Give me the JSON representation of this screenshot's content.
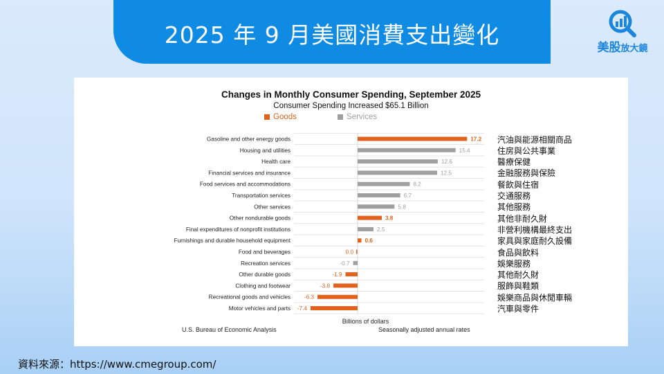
{
  "header": {
    "title": "2025 年 9 月美國消費支出變化"
  },
  "logo": {
    "icon": "magnifier-chart-icon",
    "brand_main": "美股",
    "brand_sub": "放大鏡",
    "color": "#1c86dd"
  },
  "source": {
    "text": "資料來源：https://www.cmegroup.com/"
  },
  "chart_data": {
    "type": "bar",
    "orientation": "horizontal",
    "title": "Changes in Monthly Consumer Spending, September 2025",
    "subtitle": "Consumer Spending Increased $65.1 Billion",
    "xlabel": "Billions of dollars",
    "ylabel": "",
    "xlim": [
      -8,
      18
    ],
    "grid": true,
    "legend_position": "top-center",
    "legend": [
      {
        "name": "Goods",
        "color": "#e0621c"
      },
      {
        "name": "Services",
        "color": "#a0a0a0"
      }
    ],
    "categories": [
      "Gasoline and other energy goods",
      "Housing and utilities",
      "Health care",
      "Financial services and insurance",
      "Food services and accommodations",
      "Transportation services",
      "Other services",
      "Other nondurable goods",
      "Final expenditures of nonprofit institutions",
      "Furnishings and durable household equipment",
      "Food and beverages",
      "Recreation services",
      "Other durable goods",
      "Clothing and footwear",
      "Recreational goods and vehicles",
      "Motor vehicles and parts"
    ],
    "categories_zh": [
      "汽油與能源相關商品",
      "住房與公共事業",
      "醫療保健",
      "金融服務與保險",
      "餐飲與住宿",
      "交通服務",
      "其他服務",
      "其他非耐久財",
      "非營利機構最終支出",
      "家具與家庭耐久設備",
      "食品與飲料",
      "娛樂服務",
      "其他耐久財",
      "服飾與鞋類",
      "娛樂商品與休閒車輛",
      "汽車與零件"
    ],
    "values": [
      17.2,
      15.4,
      12.6,
      12.5,
      8.2,
      6.7,
      5.8,
      3.8,
      2.5,
      0.6,
      0.0,
      -0.7,
      -1.9,
      -3.8,
      -6.3,
      -7.4
    ],
    "value_labels": [
      "17.2",
      "15.4",
      "12.6",
      "12.5",
      "8.2",
      "6.7",
      "5.8",
      "3.8",
      "2.5",
      "0.6",
      "0.0",
      "-0.7",
      "-1.9",
      "-3.8",
      "-6.3",
      "-7.4"
    ],
    "series_type": [
      "Goods",
      "Services",
      "Services",
      "Services",
      "Services",
      "Services",
      "Services",
      "Goods",
      "Services",
      "Goods",
      "Goods",
      "Services",
      "Goods",
      "Goods",
      "Goods",
      "Goods"
    ],
    "footnote_left": "U.S. Bureau of Economic Analysis",
    "footnote_right": "Seasonally adjusted annual rates"
  }
}
